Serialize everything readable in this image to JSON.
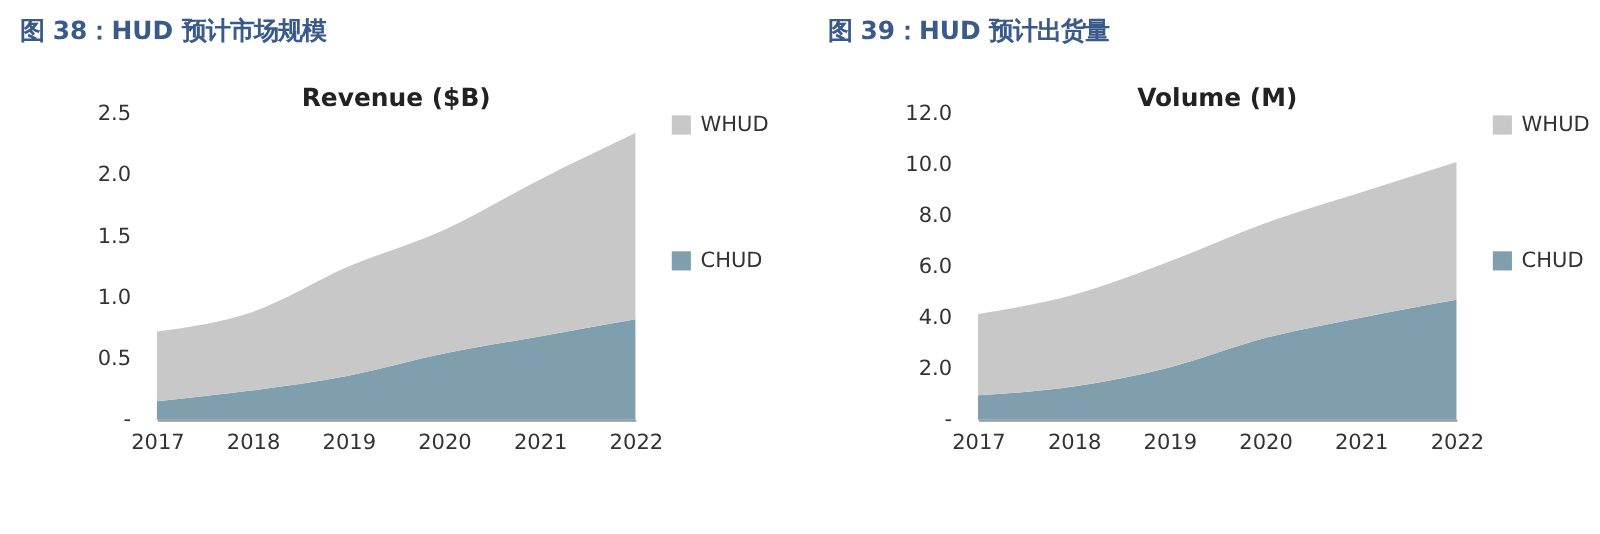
{
  "chart_data": [
    {
      "type": "area",
      "title": "图 38：HUD 预计市场规模",
      "subtitle": "Revenue ($B)",
      "categories": [
        "2017",
        "2018",
        "2019",
        "2020",
        "2021",
        "2022"
      ],
      "stacked": true,
      "legend": "right",
      "grid": false,
      "ylim": [
        0,
        2.5
      ],
      "yticks": [
        {
          "value": 0,
          "label": "-"
        },
        0.5,
        {
          "value": 1,
          "label": "1.0"
        },
        1.5,
        {
          "value": 2,
          "label": "2.0"
        },
        2.5
      ],
      "series": [
        {
          "name": "CHUD",
          "color": "#7f9fae",
          "values": [
            0.15,
            0.24,
            0.36,
            0.54,
            0.68,
            0.82
          ]
        },
        {
          "name": "WHUD",
          "color": "#c8c8c8",
          "values": [
            0.57,
            0.64,
            0.89,
            1.01,
            1.28,
            1.52
          ]
        }
      ]
    },
    {
      "type": "area",
      "title": "图 39：HUD 预计出货量",
      "subtitle": "Volume (M)",
      "categories": [
        "2017",
        "2018",
        "2019",
        "2020",
        "2021",
        "2022"
      ],
      "stacked": true,
      "legend": "right",
      "grid": false,
      "ylim": [
        0,
        12
      ],
      "yticks": [
        {
          "value": 0,
          "label": "-"
        },
        {
          "value": 2,
          "label": "2.0"
        },
        {
          "value": 4,
          "label": "4.0"
        },
        {
          "value": 6,
          "label": "6.0"
        },
        {
          "value": 8,
          "label": "8.0"
        },
        {
          "value": 10,
          "label": "10.0"
        },
        {
          "value": 12,
          "label": "12.0"
        }
      ],
      "series": [
        {
          "name": "CHUD",
          "color": "#7f9fae",
          "values": [
            0.96,
            1.3,
            2.05,
            3.2,
            4.0,
            4.7
          ]
        },
        {
          "name": "WHUD",
          "color": "#c8c8c8",
          "values": [
            3.18,
            3.6,
            4.15,
            4.5,
            4.9,
            5.4
          ]
        }
      ]
    }
  ]
}
